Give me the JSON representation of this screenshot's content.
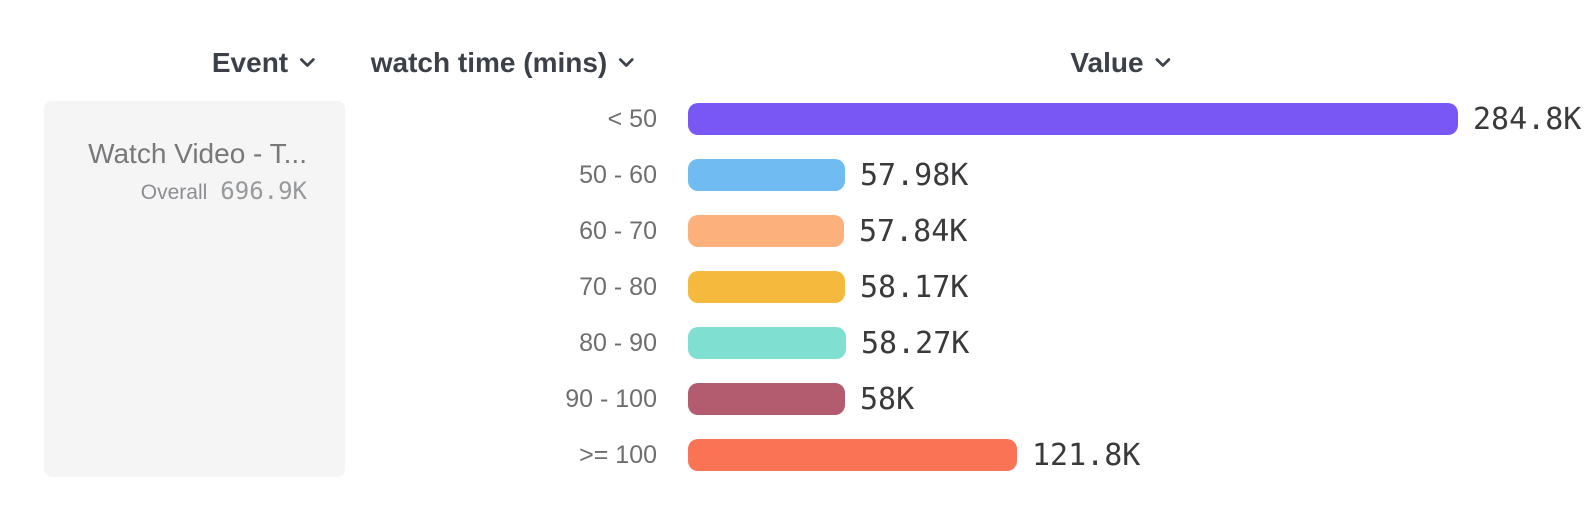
{
  "header": {
    "columns": [
      {
        "id": "event",
        "label": "Event"
      },
      {
        "id": "bucket",
        "label": "watch time (mins)"
      },
      {
        "id": "value",
        "label": "Value"
      }
    ]
  },
  "legend_card": {
    "event_name": "Watch Video - T...",
    "overall_label": "Overall",
    "overall_value": "696.9K"
  },
  "chart_data": {
    "type": "bar",
    "orientation": "horizontal",
    "title": "",
    "xlabel": "Value",
    "ylabel": "watch time (mins)",
    "categories": [
      "< 50",
      "50 - 60",
      "60 - 70",
      "70 - 80",
      "80 - 90",
      "90 - 100",
      ">= 100"
    ],
    "values": [
      284800,
      57980,
      57840,
      58170,
      58270,
      58000,
      121800
    ],
    "value_labels": [
      "284.8K",
      "57.98K",
      "57.84K",
      "58.17K",
      "58.27K",
      "58K",
      "121.8K"
    ],
    "bar_colors": [
      "#7957F5",
      "#6FBBF2",
      "#FCB07C",
      "#F5B93D",
      "#7FE0D1",
      "#B35C70",
      "#FB7355"
    ],
    "overall_total": "696.9K",
    "grid": false,
    "legend_position": "left"
  },
  "icons": {
    "chevron_color": "#3d434b"
  }
}
